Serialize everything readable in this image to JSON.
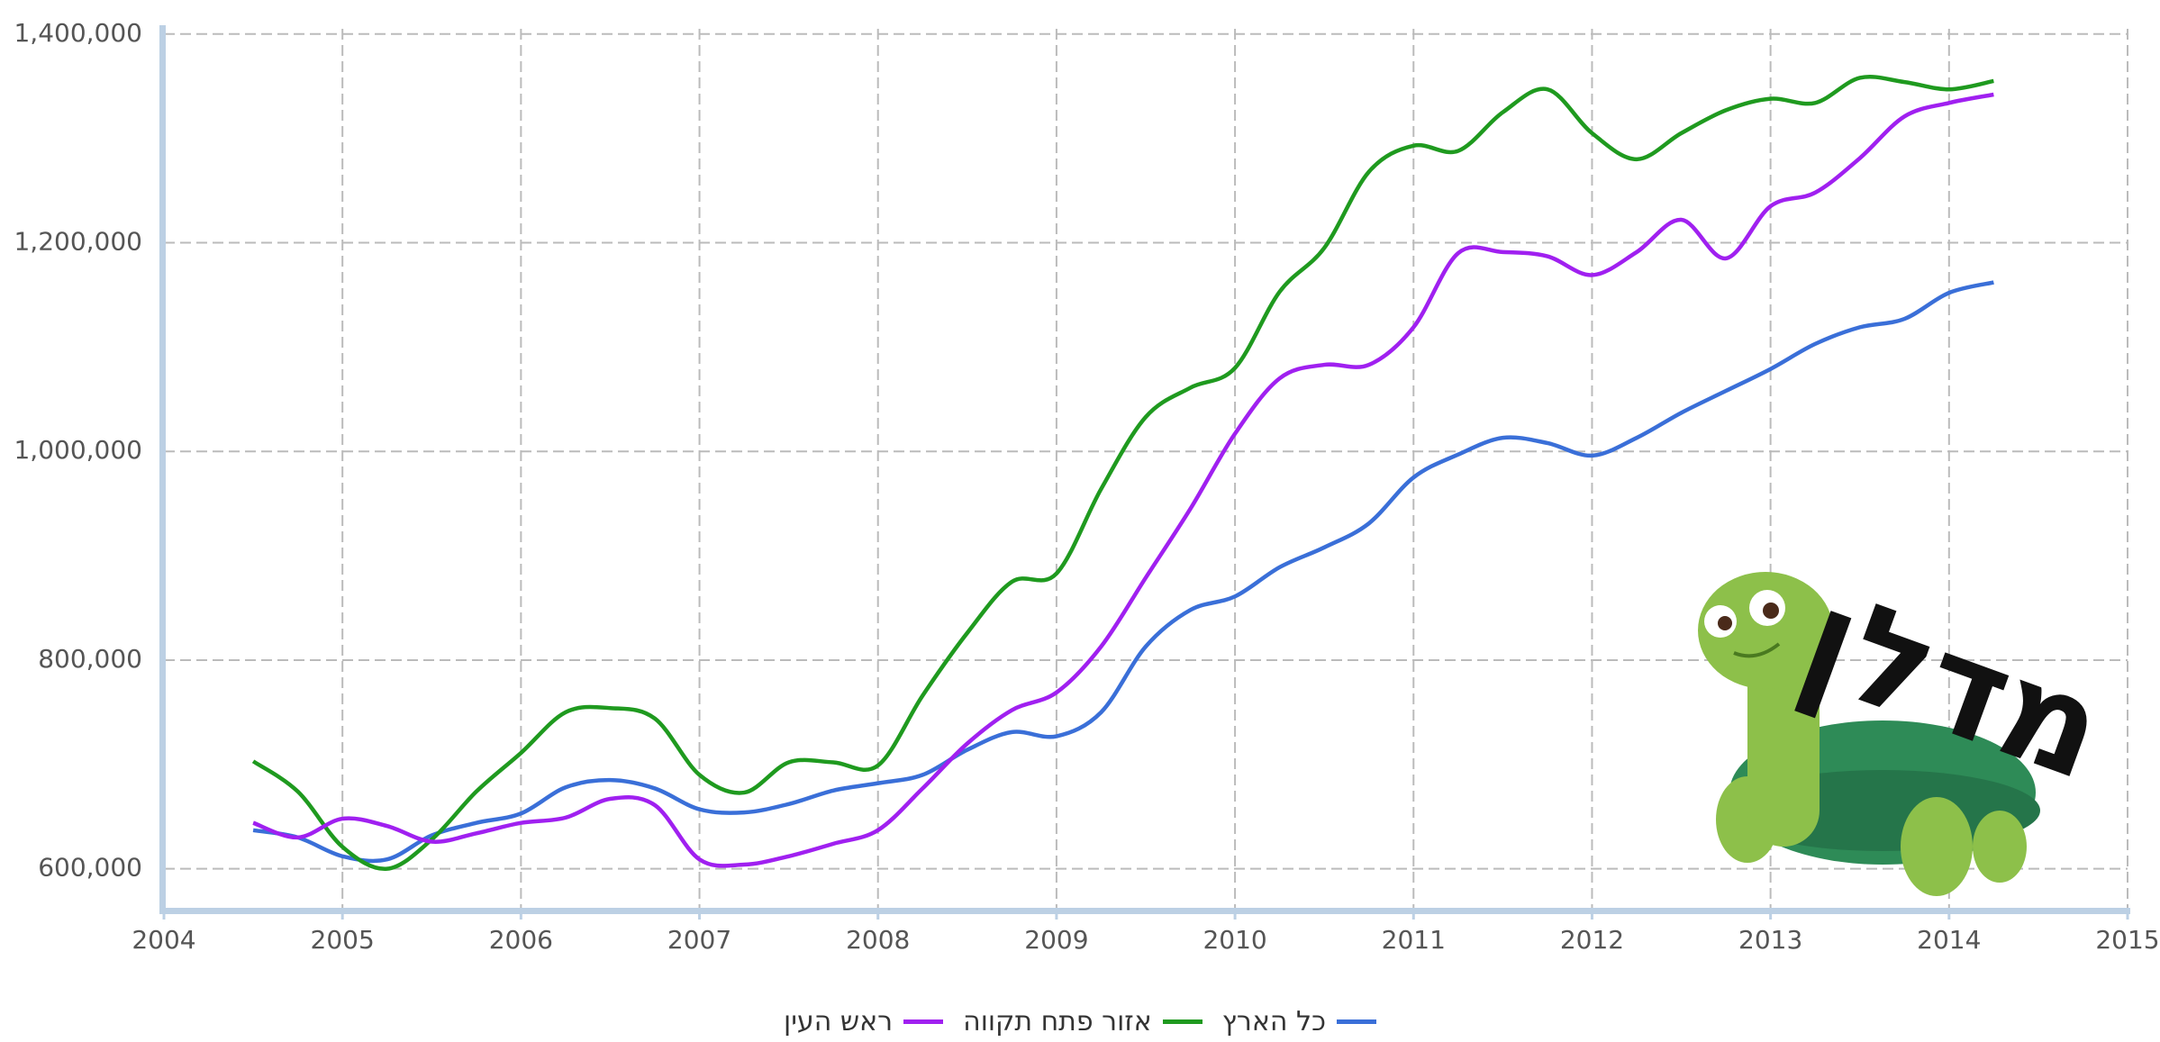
{
  "chart_data": {
    "type": "line",
    "x": [
      2004.5,
      2004.75,
      2005,
      2005.25,
      2005.5,
      2005.75,
      2006,
      2006.25,
      2006.5,
      2006.75,
      2007,
      2007.25,
      2007.5,
      2007.75,
      2008,
      2008.25,
      2008.5,
      2008.75,
      2009,
      2009.25,
      2009.5,
      2009.75,
      2010,
      2010.25,
      2010.5,
      2010.75,
      2011,
      2011.25,
      2011.5,
      2011.75,
      2012,
      2012.25,
      2012.5,
      2012.75,
      2013,
      2013.25,
      2013.5,
      2013.75,
      2014,
      2014.25
    ],
    "series": [
      {
        "name": "כל הארץ",
        "color": "#3a6fd8",
        "values": [
          637000,
          630000,
          612000,
          609000,
          632000,
          644000,
          653000,
          678000,
          685000,
          677000,
          657000,
          654000,
          662000,
          675000,
          682000,
          690000,
          714000,
          731000,
          727000,
          750000,
          813000,
          848000,
          861000,
          889000,
          908000,
          931000,
          975000,
          997000,
          1013000,
          1008000,
          996000,
          1013000,
          1037000,
          1058000,
          1079000,
          1103000,
          1119000,
          1127000,
          1152000,
          1162000
        ]
      },
      {
        "name": "אזור פתח תקווה",
        "color": "#1f9a1f",
        "values": [
          703000,
          674000,
          621000,
          600000,
          628000,
          674000,
          711000,
          750000,
          754000,
          744000,
          690000,
          673000,
          702000,
          702000,
          699000,
          766000,
          826000,
          875000,
          883000,
          964000,
          1033000,
          1061000,
          1080000,
          1153000,
          1195000,
          1268000,
          1293000,
          1288000,
          1325000,
          1347000,
          1305000,
          1280000,
          1305000,
          1327000,
          1338000,
          1334000,
          1358000,
          1354000,
          1347000,
          1355000
        ]
      },
      {
        "name": "ראש העין",
        "color": "#a020f0",
        "values": [
          644000,
          630000,
          648000,
          641000,
          626000,
          634000,
          644000,
          649000,
          667000,
          661000,
          609000,
          604000,
          612000,
          624000,
          637000,
          677000,
          720000,
          752000,
          769000,
          813000,
          879000,
          945000,
          1017000,
          1070000,
          1083000,
          1083000,
          1119000,
          1190000,
          1191000,
          1187000,
          1169000,
          1191000,
          1222000,
          1185000,
          1235000,
          1248000,
          1281000,
          1321000,
          1334000,
          1342000
        ]
      }
    ],
    "xlim": [
      2004,
      2015
    ],
    "xticks": [
      2004,
      2005,
      2006,
      2007,
      2008,
      2009,
      2010,
      2011,
      2012,
      2013,
      2014,
      2015
    ],
    "ylim": [
      560000,
      1405000
    ],
    "yticks": [
      {
        "value": 600000,
        "label": "600,000"
      },
      {
        "value": 800000,
        "label": "800,000"
      },
      {
        "value": 1000000,
        "label": "1,000,000"
      },
      {
        "value": 1200000,
        "label": "1,200,000"
      },
      {
        "value": 1400000,
        "label": "1,400,000"
      }
    ],
    "grid": true,
    "legend": "bottom"
  },
  "logo": "מדלן"
}
